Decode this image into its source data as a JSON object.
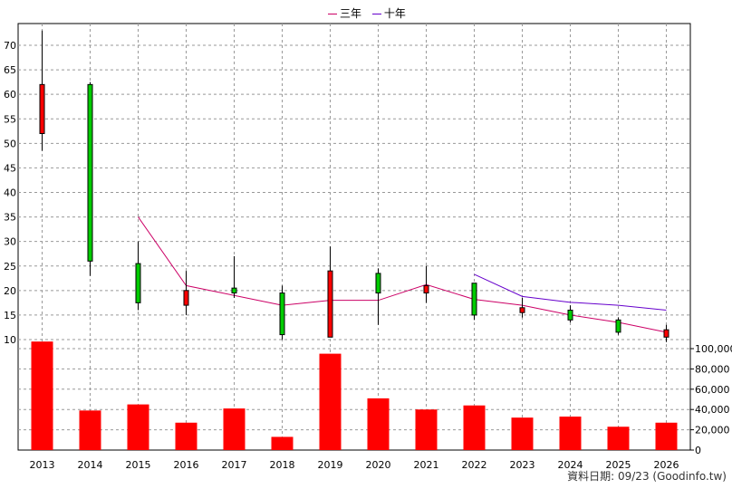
{
  "legend": [
    {
      "label": "三年",
      "color": "#cc0066"
    },
    {
      "label": "十年",
      "color": "#6600cc"
    }
  ],
  "footer": "資料日期: 09/23 (Goodinfo.tw)",
  "chart_data": {
    "type": "candlestick",
    "categories": [
      "2013",
      "2014",
      "2015",
      "2016",
      "2017",
      "2018",
      "2019",
      "2020",
      "2021",
      "2022",
      "2023",
      "2024",
      "2025",
      "2026"
    ],
    "ohlc": [
      {
        "open": 52,
        "high": 73,
        "low": 48.5,
        "close": 62
      },
      {
        "open": 62,
        "high": 62.5,
        "low": 23,
        "close": 26
      },
      {
        "open": 25.5,
        "high": 30,
        "low": 16,
        "close": 17.5
      },
      {
        "open": 17,
        "high": 24,
        "low": 15,
        "close": 20
      },
      {
        "open": 20.5,
        "high": 27,
        "low": 18.5,
        "close": 19.5
      },
      {
        "open": 19.5,
        "high": 21,
        "low": 10,
        "close": 11
      },
      {
        "open": 10.5,
        "high": 29,
        "low": 10.5,
        "close": 24
      },
      {
        "open": 23.5,
        "high": 24.5,
        "low": 13,
        "close": 19.5
      },
      {
        "open": 19.5,
        "high": 25,
        "low": 17.5,
        "close": 21
      },
      {
        "open": 21.5,
        "high": 21.5,
        "low": 14,
        "close": 15
      },
      {
        "open": 15.5,
        "high": 18.5,
        "low": 14.5,
        "close": 16.5
      },
      {
        "open": 16,
        "high": 17,
        "low": 13.5,
        "close": 14
      },
      {
        "open": 14,
        "high": 14.5,
        "low": 11,
        "close": 11.5
      },
      {
        "open": 10.5,
        "high": 13,
        "low": 9.5,
        "close": 12
      }
    ],
    "colors": {
      "up": "#ff0000",
      "down": "#00cc00"
    },
    "ma_series": [
      {
        "name": "三年",
        "color": "#cc0066",
        "values": [
          null,
          null,
          35,
          21,
          19,
          17,
          18,
          18,
          21.2,
          18.2,
          17,
          15,
          13.5,
          11.5
        ]
      },
      {
        "name": "十年",
        "color": "#6600cc",
        "values": [
          null,
          null,
          null,
          null,
          null,
          null,
          null,
          null,
          null,
          23.3,
          18.8,
          17.6,
          17,
          16
        ]
      }
    ],
    "price_axis": {
      "min": 8,
      "max": 75,
      "ticks": [
        10,
        15,
        20,
        25,
        30,
        35,
        40,
        45,
        50,
        55,
        60,
        65,
        70
      ]
    },
    "volume": {
      "values": [
        107000,
        39000,
        45000,
        27000,
        41000,
        13000,
        95000,
        51000,
        40000,
        44000,
        32000,
        33000,
        23000,
        27000
      ],
      "color": "#ff0000",
      "axis": {
        "min": 0,
        "max": 110000,
        "ticks": [
          0,
          20000,
          40000,
          60000,
          80000,
          100000
        ],
        "tick_labels": [
          "0",
          "20,000",
          "40,000",
          "60,000",
          "80,000",
          "100,000"
        ]
      }
    },
    "grid": true
  }
}
